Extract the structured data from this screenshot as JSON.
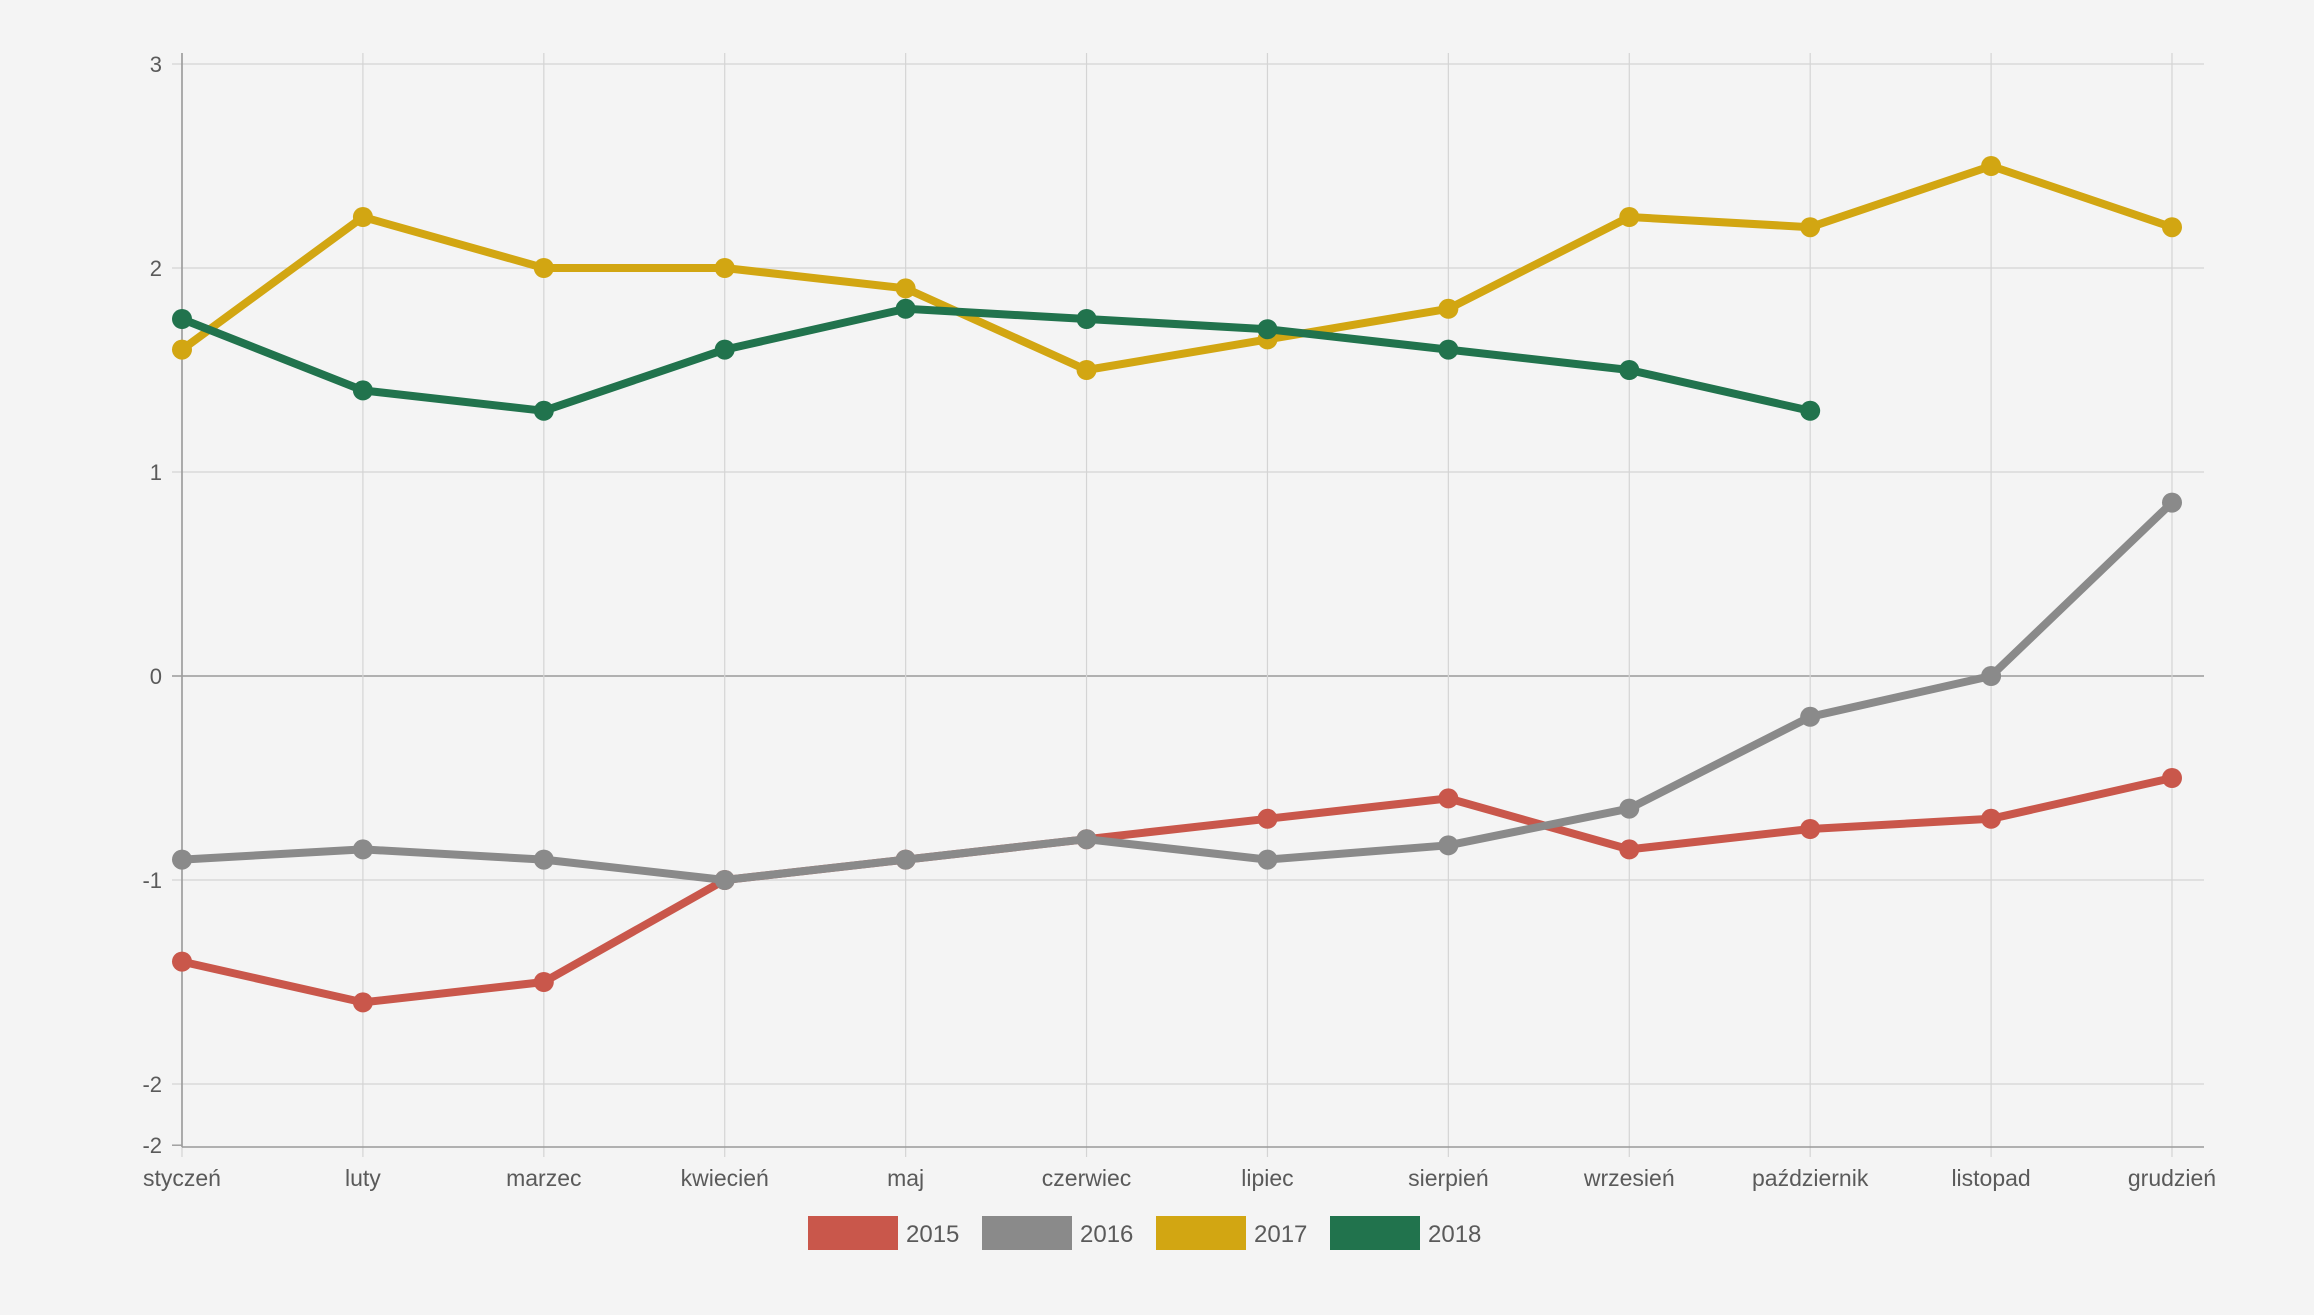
{
  "chart_data": {
    "type": "line",
    "title": "",
    "xlabel": "",
    "ylabel": "",
    "categories": [
      "styczeń",
      "luty",
      "marzec",
      "kwiecień",
      "maj",
      "czerwiec",
      "lipiec",
      "sierpień",
      "wrzesień",
      "październik",
      "listopad",
      "grudzień"
    ],
    "ylim": [
      -2.3,
      3
    ],
    "y_ticks": [
      {
        "value": 3,
        "label": "3"
      },
      {
        "value": 2,
        "label": "2"
      },
      {
        "value": 1,
        "label": "1"
      },
      {
        "value": 0,
        "label": "0"
      },
      {
        "value": -1,
        "label": "-1"
      },
      {
        "value": -2,
        "label": "-2"
      },
      {
        "value": -2.3,
        "label": "-2"
      }
    ],
    "grid": true,
    "legend_position": "bottom-center",
    "series": [
      {
        "name": "2015",
        "color": "#c9574b",
        "values": [
          -1.4,
          -1.6,
          -1.5,
          -1.0,
          -0.9,
          -0.8,
          -0.7,
          -0.6,
          -0.85,
          -0.75,
          -0.7,
          -0.5
        ]
      },
      {
        "name": "2016",
        "color": "#8a8a8a",
        "values": [
          -0.9,
          -0.85,
          -0.9,
          -1.0,
          -0.9,
          -0.8,
          -0.9,
          -0.83,
          -0.65,
          -0.2,
          0.0,
          0.85
        ]
      },
      {
        "name": "2017",
        "color": "#d2a612",
        "values": [
          1.6,
          2.25,
          2.0,
          2.0,
          1.9,
          1.5,
          1.65,
          1.8,
          2.25,
          2.2,
          2.5,
          2.2
        ]
      },
      {
        "name": "2018",
        "color": "#21734d",
        "values": [
          1.75,
          1.4,
          1.3,
          1.6,
          1.8,
          1.75,
          1.7,
          1.6,
          1.5,
          1.3,
          null,
          null
        ]
      }
    ]
  }
}
